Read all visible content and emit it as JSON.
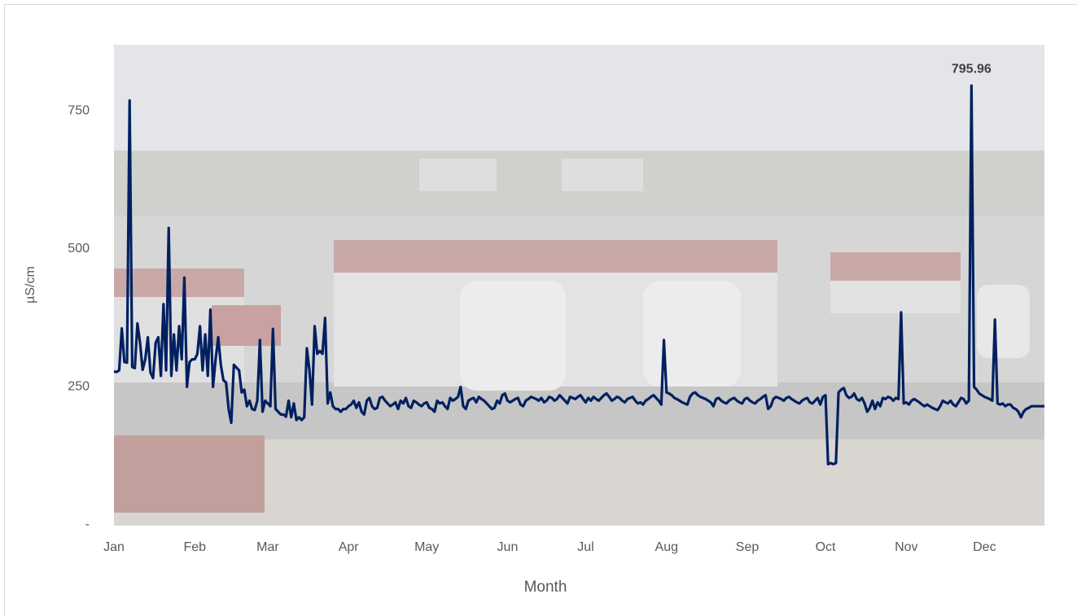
{
  "chart_data": {
    "type": "line",
    "x_label": "Month",
    "y_label": "µS/cm",
    "xlim": [
      0,
      357
    ],
    "ylim": [
      0,
      870
    ],
    "xticks": [
      {
        "value": 0,
        "label": "Jan"
      },
      {
        "value": 31,
        "label": "Feb"
      },
      {
        "value": 59,
        "label": "Mar"
      },
      {
        "value": 90,
        "label": "Apr"
      },
      {
        "value": 120,
        "label": "May"
      },
      {
        "value": 151,
        "label": "Jun"
      },
      {
        "value": 181,
        "label": "Jul"
      },
      {
        "value": 212,
        "label": "Aug"
      },
      {
        "value": 243,
        "label": "Sep"
      },
      {
        "value": 273,
        "label": "Oct"
      },
      {
        "value": 304,
        "label": "Nov"
      },
      {
        "value": 334,
        "label": "Dec"
      }
    ],
    "yticks": [
      {
        "value": 0,
        "label": "-"
      },
      250,
      500,
      750
    ],
    "grid": false,
    "series": [
      {
        "color": "#002060",
        "x": [
          0,
          1,
          2,
          3,
          4,
          5,
          6,
          7,
          8,
          9,
          10,
          11,
          12,
          13,
          14,
          15,
          16,
          17,
          18,
          19,
          20,
          21,
          22,
          23,
          24,
          25,
          26,
          27,
          28,
          29,
          30,
          31,
          32,
          33,
          34,
          35,
          36,
          37,
          38,
          39,
          40,
          41,
          42,
          43,
          44,
          45,
          46,
          47,
          48,
          49,
          50,
          51,
          52,
          53,
          54,
          55,
          56,
          57,
          58,
          59,
          60,
          61,
          62,
          63,
          64,
          65,
          66,
          67,
          68,
          69,
          70,
          71,
          72,
          73,
          74,
          75,
          76,
          77,
          78,
          79,
          80,
          81,
          82,
          83,
          84,
          85,
          86,
          87,
          88,
          89,
          90,
          91,
          92,
          93,
          94,
          95,
          96,
          97,
          98,
          99,
          100,
          101,
          102,
          103,
          104,
          105,
          106,
          107,
          108,
          109,
          110,
          111,
          112,
          113,
          114,
          115,
          116,
          117,
          118,
          119,
          120,
          121,
          122,
          123,
          124,
          125,
          126,
          127,
          128,
          129,
          130,
          131,
          132,
          133,
          134,
          135,
          136,
          137,
          138,
          139,
          140,
          141,
          142,
          143,
          144,
          145,
          146,
          147,
          148,
          149,
          150,
          151,
          152,
          153,
          154,
          155,
          156,
          157,
          158,
          159,
          160,
          161,
          162,
          163,
          164,
          165,
          166,
          167,
          168,
          169,
          170,
          171,
          172,
          173,
          174,
          175,
          176,
          177,
          178,
          179,
          180,
          181,
          182,
          183,
          184,
          185,
          186,
          187,
          188,
          189,
          190,
          191,
          192,
          193,
          194,
          195,
          196,
          197,
          198,
          199,
          200,
          201,
          202,
          203,
          204,
          205,
          206,
          207,
          208,
          209,
          210,
          211,
          212,
          213,
          214,
          215,
          216,
          217,
          218,
          219,
          220,
          221,
          222,
          223,
          224,
          225,
          226,
          227,
          228,
          229,
          230,
          231,
          232,
          233,
          234,
          235,
          236,
          237,
          238,
          239,
          240,
          241,
          242,
          243,
          244,
          245,
          246,
          247,
          248,
          249,
          250,
          251,
          252,
          253,
          254,
          255,
          256,
          257,
          258,
          259,
          260,
          261,
          262,
          263,
          264,
          265,
          266,
          267,
          268,
          269,
          270,
          271,
          272,
          273,
          274,
          275,
          276,
          277,
          278,
          279,
          280,
          281,
          282,
          283,
          284,
          285,
          286,
          287,
          288,
          289,
          290,
          291,
          292,
          293,
          294,
          295,
          296,
          297,
          298,
          299,
          300,
          301,
          302,
          303,
          304,
          305,
          306,
          307,
          308,
          309,
          310,
          311,
          312,
          313,
          314,
          315,
          316,
          317,
          318,
          319,
          320,
          321,
          322,
          323,
          324,
          325,
          326,
          327,
          328,
          329,
          330,
          331,
          332,
          333,
          334,
          335,
          336,
          337,
          338,
          339,
          340,
          341,
          342,
          343,
          344,
          345,
          346,
          347,
          348,
          349,
          350,
          351,
          352,
          353,
          354,
          355,
          356,
          357
        ],
        "values": [
          278,
          277,
          280,
          356,
          295,
          294,
          769,
          286,
          284,
          365,
          330,
          281,
          300,
          340,
          276,
          266,
          330,
          340,
          270,
          400,
          280,
          538,
          270,
          345,
          280,
          360,
          300,
          448,
          250,
          295,
          300,
          300,
          310,
          360,
          280,
          345,
          270,
          390,
          250,
          300,
          340,
          290,
          262,
          258,
          210,
          185,
          290,
          285,
          280,
          240,
          245,
          215,
          225,
          210,
          208,
          225,
          335,
          205,
          225,
          220,
          215,
          355,
          210,
          205,
          200,
          200,
          196,
          225,
          195,
          220,
          190,
          195,
          190,
          195,
          320,
          280,
          218,
          360,
          310,
          315,
          310,
          375,
          220,
          240,
          215,
          210,
          210,
          205,
          210,
          210,
          215,
          218,
          225,
          212,
          222,
          205,
          200,
          225,
          230,
          215,
          210,
          212,
          230,
          232,
          225,
          220,
          215,
          218,
          222,
          210,
          225,
          220,
          230,
          215,
          212,
          225,
          222,
          218,
          215,
          220,
          222,
          212,
          210,
          205,
          225,
          220,
          222,
          215,
          210,
          230,
          225,
          228,
          232,
          250,
          215,
          210,
          225,
          228,
          230,
          222,
          232,
          228,
          225,
          220,
          215,
          210,
          212,
          225,
          220,
          235,
          238,
          225,
          222,
          225,
          228,
          230,
          218,
          215,
          225,
          228,
          232,
          230,
          228,
          225,
          230,
          222,
          225,
          232,
          230,
          225,
          228,
          235,
          230,
          225,
          220,
          232,
          230,
          228,
          232,
          235,
          228,
          222,
          230,
          225,
          232,
          228,
          225,
          230,
          235,
          238,
          232,
          225,
          228,
          232,
          230,
          225,
          222,
          228,
          230,
          232,
          225,
          220,
          222,
          218,
          225,
          228,
          232,
          235,
          230,
          225,
          218,
          335,
          240,
          238,
          235,
          230,
          228,
          225,
          222,
          220,
          218,
          232,
          238,
          240,
          235,
          232,
          230,
          228,
          225,
          222,
          215,
          228,
          230,
          225,
          222,
          220,
          225,
          228,
          230,
          225,
          222,
          220,
          228,
          230,
          225,
          222,
          220,
          225,
          228,
          232,
          235,
          210,
          215,
          228,
          232,
          230,
          228,
          225,
          230,
          232,
          228,
          225,
          222,
          220,
          225,
          228,
          230,
          222,
          220,
          225,
          230,
          218,
          232,
          235,
          110,
          112,
          110,
          112,
          240,
          245,
          248,
          235,
          230,
          232,
          238,
          228,
          225,
          230,
          220,
          205,
          212,
          225,
          210,
          222,
          215,
          230,
          228,
          232,
          230,
          225,
          230,
          228,
          385,
          220,
          222,
          218,
          225,
          228,
          225,
          222,
          218,
          215,
          218,
          215,
          212,
          210,
          208,
          215,
          225,
          222,
          220,
          225,
          218,
          215,
          222,
          230,
          228,
          220,
          225,
          795.96,
          250,
          245,
          238,
          235,
          232,
          230,
          228,
          225,
          372,
          220,
          218,
          220,
          215,
          218,
          218,
          212,
          210,
          205,
          195,
          205,
          210,
          212,
          215,
          215,
          215,
          215,
          215,
          215
        ],
        "value_labels": [
          null,
          null,
          null,
          null,
          null,
          null,
          null,
          null,
          null,
          null,
          null,
          null,
          null,
          null,
          null,
          null,
          null,
          null,
          null,
          null,
          null,
          null,
          null,
          null,
          null,
          null,
          null,
          null,
          null,
          null,
          null,
          null,
          null,
          null,
          null,
          null,
          null,
          null,
          null,
          null,
          null,
          null,
          null,
          null,
          null,
          null,
          null,
          null,
          null,
          null,
          null,
          null,
          null,
          null,
          null,
          null,
          null,
          null,
          null,
          null,
          null,
          null,
          null,
          null,
          null,
          null,
          null,
          null,
          null,
          null,
          null,
          null,
          null,
          null,
          null,
          null,
          null,
          null,
          null,
          null,
          null,
          null,
          null,
          null,
          null,
          null,
          null,
          null,
          null,
          null,
          null,
          null,
          null,
          null,
          null,
          null,
          null,
          null,
          null,
          null,
          null,
          null,
          null,
          null,
          null,
          null,
          null,
          null,
          null,
          null,
          null,
          null,
          null,
          null,
          null,
          null,
          null,
          null,
          null,
          null,
          null,
          null,
          null,
          null,
          null,
          null,
          null,
          null,
          null,
          null,
          null,
          null,
          null,
          null,
          null,
          null,
          null,
          null,
          null,
          null,
          null,
          null,
          null,
          null,
          null,
          null,
          null,
          null,
          null,
          null,
          null,
          null,
          null,
          null,
          null,
          null,
          null,
          null,
          null,
          null,
          null,
          null,
          null,
          null,
          null,
          null,
          null,
          null,
          null,
          null,
          null,
          null,
          null,
          null,
          null,
          null,
          null,
          null,
          null,
          null,
          null,
          null,
          null,
          null,
          null,
          null,
          null,
          null,
          null,
          null,
          null,
          null,
          null,
          null,
          null,
          null,
          null,
          null,
          null,
          null,
          null,
          null,
          null,
          null,
          null,
          null,
          null,
          null,
          null,
          null,
          null,
          null,
          null,
          null,
          null,
          null,
          null,
          null,
          null,
          null,
          null,
          null,
          null,
          null,
          null,
          null,
          null,
          null,
          null,
          null,
          null,
          null,
          null,
          null,
          null,
          null,
          null,
          null,
          null,
          null,
          null,
          null,
          null,
          null,
          null,
          null,
          null,
          null,
          null,
          null,
          null,
          null,
          null,
          null,
          null,
          null,
          null,
          null,
          null,
          null,
          null,
          null,
          null,
          null,
          null,
          null,
          null,
          null,
          null,
          null,
          null,
          null,
          null,
          null,
          null,
          null,
          null,
          null,
          null,
          null,
          null,
          null,
          null,
          null,
          null,
          null,
          null,
          null,
          null,
          null,
          null,
          null,
          null,
          null,
          null,
          null,
          null,
          null,
          null,
          null,
          null,
          null,
          null,
          null,
          null,
          null,
          null,
          null,
          null,
          null,
          null,
          null,
          null,
          null,
          null,
          null,
          null,
          null,
          null,
          null,
          null,
          null,
          null,
          null,
          null,
          null,
          null,
          null,
          null,
          "795.96",
          null,
          null,
          null,
          null,
          null,
          null,
          null,
          null,
          null,
          null,
          null,
          null,
          null,
          null,
          null,
          null,
          null,
          null,
          null,
          null,
          null,
          null,
          null,
          null,
          null,
          null,
          null,
          null
        ]
      }
    ]
  }
}
